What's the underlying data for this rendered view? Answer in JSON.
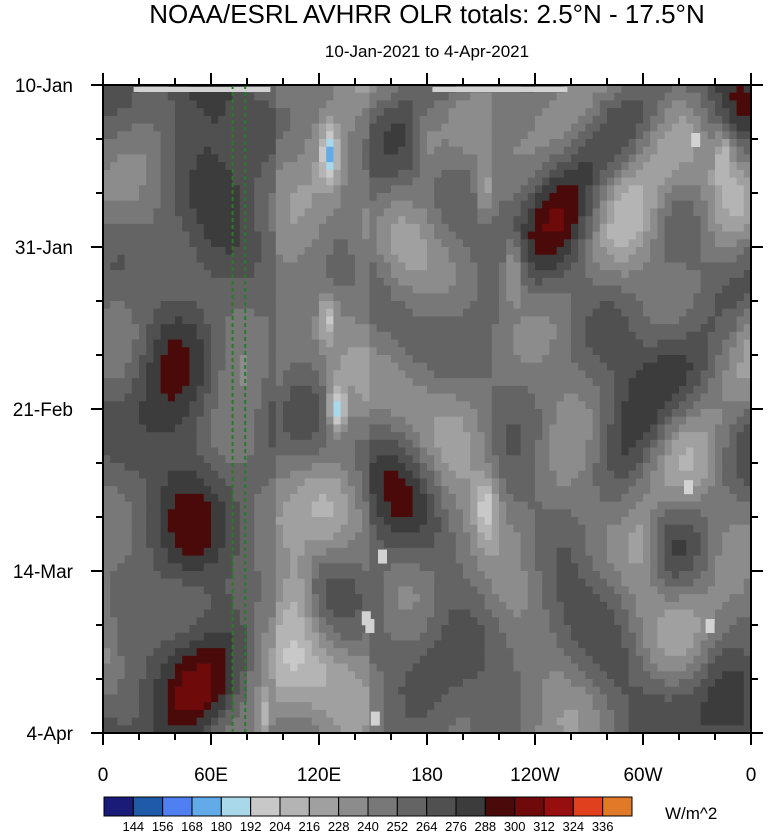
{
  "chart_data": {
    "type": "heatmap",
    "title": "NOAA/ESRL AVHRR OLR totals: 2.5°N - 17.5°N",
    "subtitle": "10-Jan-2021 to 4-Apr-2021",
    "xlabel": "",
    "ylabel": "",
    "x_ticks": [
      "0",
      "60E",
      "120E",
      "180",
      "120W",
      "60W",
      "0"
    ],
    "x_tick_lon": [
      0,
      60,
      120,
      180,
      240,
      300,
      360
    ],
    "xlim": [
      0,
      360
    ],
    "y_ticks": [
      "10-Jan",
      "31-Jan",
      "21-Feb",
      "14-Mar",
      "4-Apr"
    ],
    "y_tick_days": [
      0,
      21,
      42,
      63,
      84
    ],
    "ylim": [
      0,
      84
    ],
    "y_direction": "time increases downward",
    "colorbar": {
      "unit": "W/m^2",
      "levels": [
        144,
        156,
        168,
        180,
        192,
        204,
        216,
        228,
        240,
        252,
        264,
        276,
        288,
        300,
        312,
        324,
        336
      ],
      "colors": [
        "#1a1a78",
        "#1f5aa8",
        "#4f7ff0",
        "#62aae8",
        "#a8d8ea",
        "#c8c8c8",
        "#b4b4b4",
        "#a0a0a0",
        "#8c8c8c",
        "#787878",
        "#646464",
        "#505050",
        "#3c3c3c",
        "#4a0a0a",
        "#6e0a0a",
        "#960e0e",
        "#e0401e",
        "#e07a28"
      ]
    },
    "reference_lines": {
      "lon_values": [
        72,
        79
      ],
      "color": "#2a7a2a",
      "style": "dashed"
    },
    "missing_data_color": "#d2d2d2",
    "grid": false,
    "legend_placement": "bottom colorbar"
  }
}
